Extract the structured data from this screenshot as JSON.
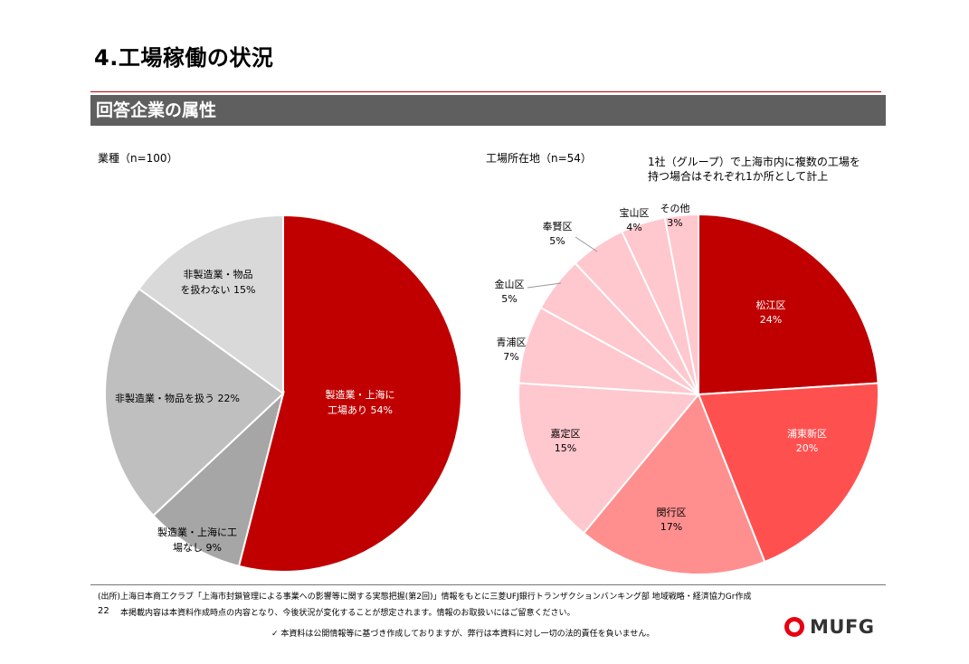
{
  "header": {
    "title": "4.工場稼働の状況",
    "section": "回答企業の属性"
  },
  "chart_data": [
    {
      "type": "pie",
      "title": "業種（n=100）",
      "start": "12 o'clock, clockwise",
      "slices": [
        {
          "label": "製造業・上海に工場あり",
          "label_lines": [
            "製造業・上海に",
            "工場あり 54%"
          ],
          "value": 54,
          "color": "#c00000",
          "text_color": "#ffffff"
        },
        {
          "label": "製造業・上海に工場なし",
          "label_lines": [
            "製造業・上海に工",
            "場なし 9%"
          ],
          "value": 9,
          "color": "#a6a6a6",
          "text_color": "#000000"
        },
        {
          "label": "非製造業・物品を扱う",
          "label_lines": [
            "非製造業・物品を扱う 22%"
          ],
          "value": 22,
          "color": "#bfbfbf",
          "text_color": "#000000"
        },
        {
          "label": "非製造業・物品を扱わない",
          "label_lines": [
            "非製造業・物品",
            "を扱わない 15%"
          ],
          "value": 15,
          "color": "#d9d9d9",
          "text_color": "#000000"
        }
      ]
    },
    {
      "type": "pie",
      "title": "工場所在地（n=54）",
      "start": "12 o'clock, clockwise",
      "slices": [
        {
          "label": "松江区",
          "value": 24,
          "pct": "24%",
          "color": "#c00000",
          "text_color": "#ffffff"
        },
        {
          "label": "浦東新区",
          "value": 20,
          "pct": "20%",
          "color": "#ff5050",
          "text_color": "#ffffff"
        },
        {
          "label": "閔行区",
          "value": 17,
          "pct": "17%",
          "color": "#ff8f8f",
          "text_color": "#000000"
        },
        {
          "label": "嘉定区",
          "value": 15,
          "pct": "15%",
          "color": "#ffc7ce",
          "text_color": "#000000"
        },
        {
          "label": "青浦区",
          "value": 7,
          "pct": "7%",
          "color": "#ffc7ce",
          "text_color": "#000000"
        },
        {
          "label": "金山区",
          "value": 5,
          "pct": "5%",
          "color": "#ffc7ce",
          "text_color": "#000000"
        },
        {
          "label": "奉賢区",
          "value": 5,
          "pct": "5%",
          "color": "#ffc7ce",
          "text_color": "#000000"
        },
        {
          "label": "宝山区",
          "value": 4,
          "pct": "4%",
          "color": "#ffc7ce",
          "text_color": "#000000"
        },
        {
          "label": "その他",
          "value": 3,
          "pct": "3%",
          "color": "#ffc7ce",
          "text_color": "#000000"
        }
      ],
      "note": [
        "1社（グループ）で上海市内に複数の工場を",
        "持つ場合はそれぞれ1か所として計上"
      ]
    }
  ],
  "footer": {
    "source": "(出所)上海日本商工クラブ「上海市封鎖管理による事業への影響等に関する実態把握(第2回)」情報をもとに三菱UFJ銀行トランザクションバンキング部 地域戦略・経済協力Gr作成",
    "page_number": "22",
    "disclaimer1": "本掲載内容は本資料作成時点の内容となり、今後状況が変化することが想定されます。情報のお取扱いにはご留意ください。",
    "disclaimer2": "✓ 本資料は公開情報等に基づき作成しておりますが、弊行は本資料に対し一切の法的責任を負いません。",
    "logo_text": "MUFG"
  }
}
